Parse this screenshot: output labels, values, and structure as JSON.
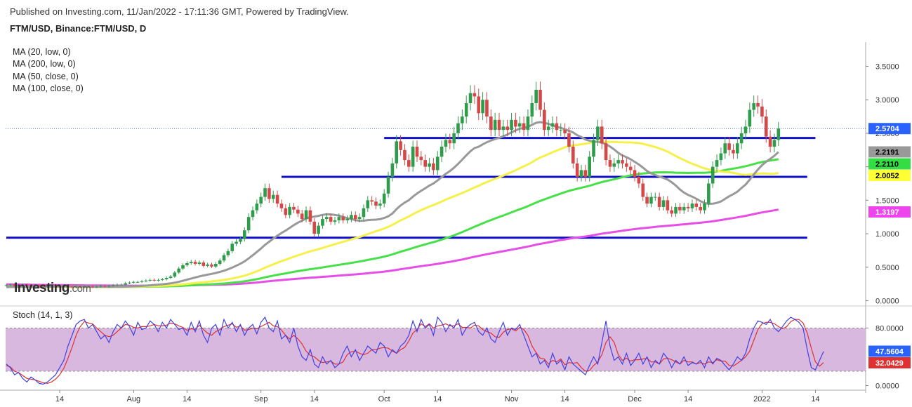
{
  "header": {
    "published": "Published on Investing.com, 11/Jan/2022 - 17:11:36 GMT, Powered by TradingView.",
    "symbol": "FTM/USD, Binance:FTM/USD, D"
  },
  "legend": [
    "MA (20, low, 0)",
    "MA (200, low, 0)",
    "MA (50, close, 0)",
    "MA (100, close, 0)"
  ],
  "stoch_title": "Stoch (14, 1, 3)",
  "logo": {
    "main": "Investing",
    "suffix": ".com"
  },
  "chart_data": [
    {
      "type": "candlestick",
      "title": "FTM/USD, Binance:FTM/USD, D",
      "ylim": [
        0,
        3.8
      ],
      "y_ticks": [
        "3.5000",
        "3.0000",
        "2.5000",
        "2.0000",
        "1.5000",
        "1.0000",
        "0.5000",
        "0.0000"
      ],
      "x_ticks": [
        "14",
        "Aug",
        "14",
        "Sep",
        "14",
        "Oct",
        "14",
        "Nov",
        "14",
        "Dec",
        "14",
        "2022",
        "14"
      ],
      "last_price": {
        "value": "2.5704",
        "color": "#2962ff"
      },
      "ma_labels": [
        {
          "name": "MA (20, low, 0)",
          "value": "2.2191",
          "color": "#999999",
          "text_color": "#000000"
        },
        {
          "name": "MA (100, close, 0)",
          "value": "2.2110",
          "color": "#33dd44",
          "text_color": "#000000"
        },
        {
          "name": "MA (50, close, 0)",
          "value": "2.0052",
          "color": "#ffff33",
          "text_color": "#000000"
        },
        {
          "name": "MA (200, low, 0)",
          "value": "1.3197",
          "color": "#ee44ee",
          "text_color": "#ffffff"
        }
      ],
      "colors": {
        "up": "#2e9c4a",
        "down": "#d44848",
        "ma20": "#999999",
        "ma50": "#f6f04a",
        "ma100": "#48e048",
        "ma200": "#e64ee6",
        "support": "#1010c8"
      },
      "horizontal_levels": [
        {
          "value": 2.43,
          "from": "2021-10-01",
          "to": "2022-01-14"
        },
        {
          "value": 1.85,
          "from": "2021-09-06",
          "to": "2022-01-12"
        },
        {
          "value": 0.94,
          "from": "2021-07-01",
          "to": "2022-01-12"
        }
      ],
      "start_date": "2021-07-01",
      "end_date": "2022-01-11",
      "closes": [
        0.23,
        0.24,
        0.22,
        0.23,
        0.24,
        0.23,
        0.22,
        0.23,
        0.22,
        0.21,
        0.22,
        0.23,
        0.22,
        0.21,
        0.22,
        0.21,
        0.2,
        0.21,
        0.2,
        0.21,
        0.21,
        0.2,
        0.21,
        0.22,
        0.21,
        0.22,
        0.23,
        0.24,
        0.24,
        0.26,
        0.27,
        0.28,
        0.28,
        0.29,
        0.3,
        0.31,
        0.3,
        0.31,
        0.32,
        0.34,
        0.36,
        0.42,
        0.48,
        0.53,
        0.56,
        0.58,
        0.55,
        0.57,
        0.52,
        0.54,
        0.51,
        0.55,
        0.6,
        0.68,
        0.74,
        0.85,
        0.88,
        0.92,
        1.05,
        1.25,
        1.35,
        1.45,
        1.55,
        1.68,
        1.52,
        1.58,
        1.45,
        1.38,
        1.28,
        1.4,
        1.36,
        1.3,
        1.22,
        1.35,
        1.18,
        1.0,
        1.12,
        1.22,
        1.25,
        1.18,
        1.2,
        1.25,
        1.2,
        1.22,
        1.28,
        1.22,
        1.25,
        1.38,
        1.5,
        1.48,
        1.42,
        1.45,
        1.6,
        1.85,
        2.05,
        2.38,
        2.25,
        2.1,
        2.0,
        2.3,
        2.15,
        2.1,
        2.0,
        2.05,
        1.95,
        2.15,
        2.3,
        2.4,
        2.35,
        2.5,
        2.65,
        2.75,
        2.95,
        3.1,
        3.05,
        2.8,
        3.0,
        2.75,
        2.55,
        2.7,
        2.55,
        2.6,
        2.55,
        2.7,
        2.6,
        2.65,
        2.55,
        2.75,
        2.95,
        3.15,
        2.85,
        2.55,
        2.6,
        2.65,
        2.55,
        2.55,
        2.5,
        2.3,
        2.05,
        1.85,
        1.95,
        1.85,
        2.15,
        2.4,
        2.6,
        2.35,
        2.1,
        2.0,
        2.05,
        2.1,
        2.05,
        2.0,
        1.95,
        1.85,
        1.75,
        1.55,
        1.45,
        1.55,
        1.55,
        1.4,
        1.5,
        1.35,
        1.3,
        1.4,
        1.35,
        1.4,
        1.38,
        1.45,
        1.4,
        1.35,
        1.45,
        1.75,
        2.0,
        2.1,
        2.2,
        2.35,
        2.25,
        2.2,
        2.35,
        2.5,
        2.6,
        2.85,
        2.95,
        2.9,
        2.75,
        2.45,
        2.3,
        2.4,
        2.5704
      ]
    },
    {
      "type": "line",
      "title": "Stoch (14, 1, 3)",
      "ylim": [
        0,
        100
      ],
      "y_ticks": [
        "80.0000",
        "0.0000"
      ],
      "band": [
        20,
        80
      ],
      "colors": {
        "k": "#4040e0",
        "d": "#e03030",
        "band": "#d9b8e0"
      },
      "k_last": {
        "value": "47.5604",
        "color": "#2962ff"
      },
      "d_last": {
        "value": "32.0429",
        "color": "#e03030"
      },
      "k": [
        30,
        25,
        15,
        18,
        10,
        5,
        12,
        8,
        3,
        2,
        5,
        10,
        15,
        25,
        35,
        55,
        70,
        85,
        90,
        92,
        80,
        85,
        75,
        65,
        70,
        60,
        75,
        85,
        80,
        90,
        82,
        70,
        88,
        78,
        80,
        90,
        85,
        75,
        88,
        80,
        92,
        85,
        78,
        80,
        70,
        88,
        75,
        90,
        70,
        60,
        80,
        85,
        70,
        92,
        80,
        88,
        75,
        85,
        70,
        80,
        85,
        72,
        88,
        95,
        80,
        75,
        90,
        65,
        70,
        60,
        80,
        55,
        40,
        35,
        50,
        30,
        25,
        40,
        30,
        35,
        25,
        30,
        45,
        55,
        40,
        50,
        35,
        45,
        55,
        50,
        45,
        60,
        55,
        40,
        50,
        45,
        55,
        60,
        70,
        90,
        75,
        92,
        80,
        85,
        70,
        95,
        88,
        75,
        85,
        80,
        92,
        70,
        80,
        85,
        88,
        75,
        70,
        80,
        65,
        60,
        75,
        88,
        70,
        80,
        78,
        85,
        70,
        55,
        40,
        45,
        30,
        35,
        25,
        45,
        30,
        35,
        22,
        40,
        30,
        25,
        20,
        15,
        28,
        40,
        30,
        60,
        90,
        55,
        35,
        40,
        30,
        45,
        28,
        35,
        45,
        30,
        40,
        25,
        35,
        30,
        45,
        38,
        25,
        35,
        30,
        40,
        28,
        32,
        30,
        35,
        25,
        40,
        30,
        38,
        35,
        28,
        22,
        30,
        40,
        35,
        45,
        65,
        80,
        90,
        88,
        85,
        92,
        80,
        75,
        82,
        90,
        95,
        92,
        88,
        80,
        50,
        25,
        22,
        35,
        47.5604
      ],
      "d": [
        28,
        26,
        20,
        18,
        14,
        10,
        9,
        8,
        6,
        4,
        3,
        5,
        9,
        15,
        24,
        38,
        53,
        70,
        82,
        89,
        87,
        86,
        80,
        75,
        70,
        68,
        70,
        75,
        80,
        85,
        84,
        81,
        80,
        82,
        82,
        83,
        85,
        83,
        83,
        84,
        87,
        86,
        83,
        81,
        77,
        79,
        78,
        84,
        78,
        73,
        70,
        75,
        78,
        82,
        84,
        86,
        81,
        83,
        77,
        78,
        80,
        79,
        82,
        85,
        88,
        83,
        82,
        77,
        70,
        65,
        70,
        65,
        58,
        48,
        42,
        40,
        35,
        32,
        33,
        34,
        30,
        30,
        33,
        43,
        47,
        48,
        45,
        43,
        45,
        50,
        50,
        52,
        53,
        52,
        48,
        45,
        50,
        53,
        62,
        73,
        78,
        86,
        82,
        86,
        80,
        83,
        84,
        86,
        83,
        83,
        86,
        81,
        81,
        80,
        84,
        83,
        78,
        75,
        73,
        68,
        67,
        74,
        78,
        79,
        76,
        81,
        78,
        70,
        55,
        46,
        38,
        37,
        30,
        35,
        33,
        37,
        29,
        32,
        31,
        32,
        25,
        20,
        21,
        28,
        33,
        43,
        60,
        68,
        60,
        43,
        35,
        38,
        34,
        36,
        36,
        37,
        38,
        33,
        33,
        30,
        37,
        38,
        36,
        33,
        30,
        35,
        33,
        33,
        30,
        32,
        30,
        33,
        32,
        36,
        34,
        34,
        28,
        27,
        31,
        35,
        40,
        48,
        63,
        78,
        86,
        88,
        88,
        86,
        82,
        79,
        82,
        89,
        92,
        92,
        87,
        73,
        52,
        33,
        27,
        32.0429
      ]
    }
  ]
}
